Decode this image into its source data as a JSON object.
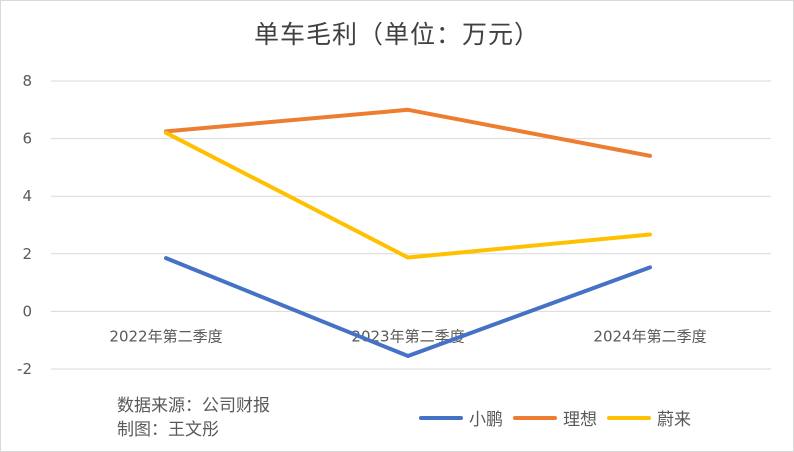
{
  "chart_data": {
    "type": "line",
    "title": "单车毛利（单位：万元）",
    "categories": [
      "2022年第二季度",
      "2023年第二季度",
      "2024年第二季度"
    ],
    "series": [
      {
        "name": "小鹏",
        "color": "#4472C4",
        "values": [
          1.85,
          -1.55,
          1.53
        ]
      },
      {
        "name": "理想",
        "color": "#ED7D31",
        "values": [
          6.25,
          7.0,
          5.4
        ]
      },
      {
        "name": "蔚来",
        "color": "#FFC000",
        "values": [
          6.2,
          1.87,
          2.67
        ]
      }
    ],
    "ylim": [
      -2,
      8
    ],
    "yticks": [
      -2,
      0,
      2,
      4,
      6,
      8
    ],
    "grid": true,
    "legend_position": "bottom-right"
  },
  "notes": {
    "source": "数据来源：公司财报",
    "author": "制图：王文彤"
  }
}
